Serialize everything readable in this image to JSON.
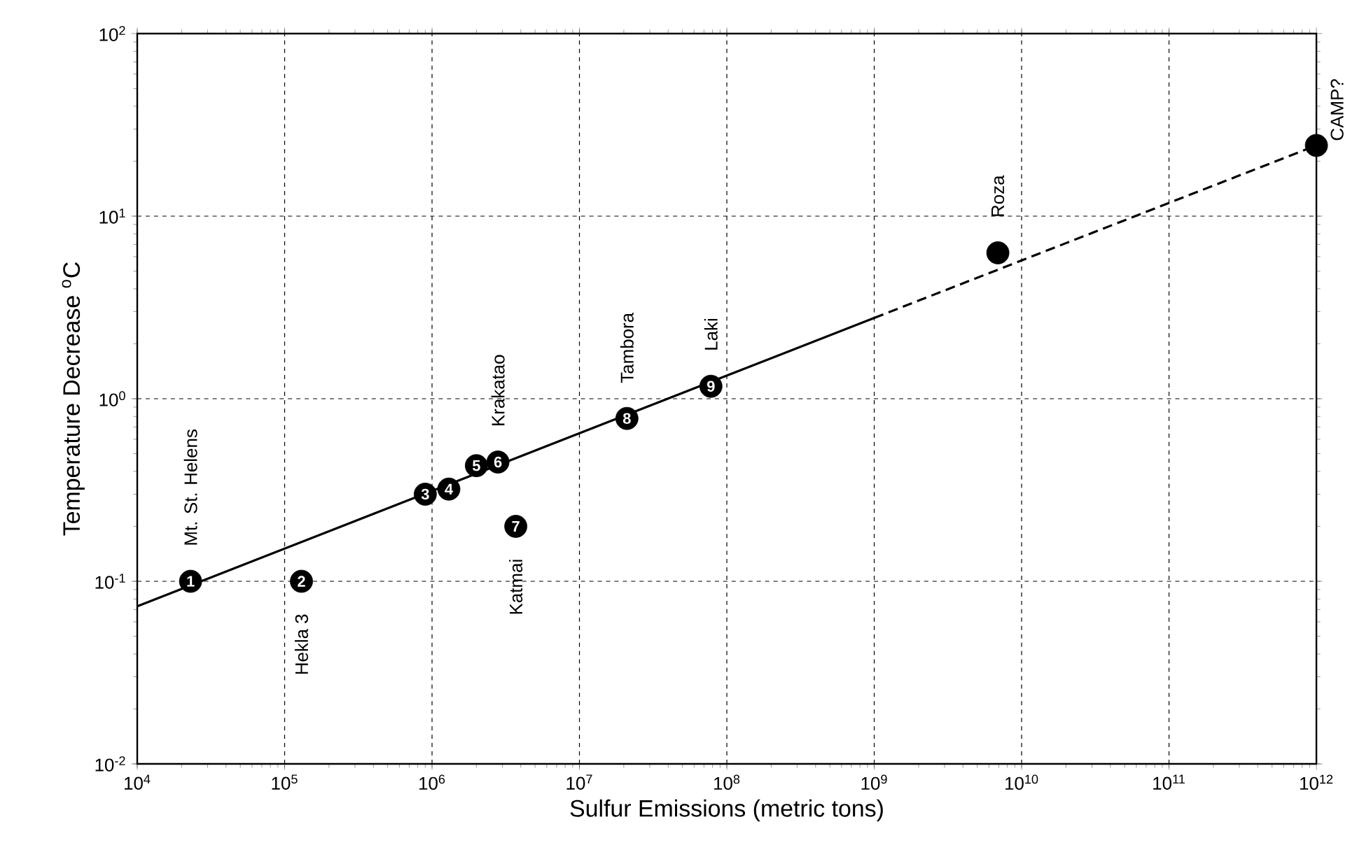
{
  "chart_data": {
    "type": "scatter",
    "xlabel": "Sulfur Emissions (metric tons)",
    "ylabel": "Temperature Decrease $^{o}$C",
    "log": "xy",
    "grid": true,
    "marker": "circle",
    "xlim": [
      10000,
      1000000000000
    ],
    "ylim": [
      0.01,
      100
    ],
    "xticks": [
      {
        "value": 10000,
        "label": "10$^{4}$"
      },
      {
        "value": 100000,
        "label": "10$^{5}$"
      },
      {
        "value": 1000000,
        "label": "10$^{6}$"
      },
      {
        "value": 10000000,
        "label": "10$^{7}$"
      },
      {
        "value": 100000000,
        "label": "10$^{8}$"
      },
      {
        "value": 1000000000,
        "label": "10$^{9}$"
      },
      {
        "value": 10000000000,
        "label": "10$^{10}$"
      },
      {
        "value": 100000000000,
        "label": "10$^{11}$"
      },
      {
        "value": 1000000000000,
        "label": "10$^{12}$"
      }
    ],
    "yticks": [
      {
        "value": 0.01,
        "label": "10$^{-2}$"
      },
      {
        "value": 0.1,
        "label": "10$^{-1}$"
      },
      {
        "value": 1,
        "label": "10$^{0}$"
      },
      {
        "value": 10,
        "label": "10$^{1}$"
      },
      {
        "value": 100,
        "label": "10$^{2}$"
      }
    ],
    "series": [
      {
        "type": "line",
        "color": "#000000",
        "marker": "none",
        "line_style": "solid",
        "x": [
          10000,
          1000000000
        ],
        "values": [
          0.073,
          2.77
        ]
      },
      {
        "type": "line",
        "color": "#000000",
        "marker": "none",
        "line_style": "dashed",
        "x": [
          1000000000,
          1000000000000
        ],
        "values": [
          2.77,
          24.4
        ]
      },
      {
        "color": "#000000",
        "x": [
          23000,
          130000,
          900000,
          1300000,
          2000000,
          2800000,
          3700000,
          21000000,
          78000000
        ],
        "values": [
          0.1,
          0.1,
          0.3,
          0.32,
          0.43,
          0.45,
          0.2,
          0.78,
          1.17
        ]
      },
      {
        "color": "#000000",
        "x": [
          6900000000,
          1000000000000
        ],
        "values": [
          6.3,
          24.4
        ]
      }
    ],
    "annotations": [
      {
        "text": "1",
        "x": 23000,
        "y": 0.1
      },
      {
        "text": "2",
        "x": 130000,
        "y": 0.1
      },
      {
        "text": "3",
        "x": 900000,
        "y": 0.3
      },
      {
        "text": "4",
        "x": 1300000,
        "y": 0.32
      },
      {
        "text": "5",
        "x": 2000000,
        "y": 0.43
      },
      {
        "text": "6",
        "x": 2800000,
        "y": 0.45
      },
      {
        "text": "7",
        "x": 3700000,
        "y": 0.2
      },
      {
        "text": "8",
        "x": 21000000,
        "y": 0.78
      },
      {
        "text": "9",
        "x": 78000000,
        "y": 1.17
      },
      {
        "text": "Mt. St. Helens",
        "x": 23000,
        "y": 0.1
      },
      {
        "text": "Hekla 3",
        "x": 130000,
        "y": 0.1
      },
      {
        "text": "Krakatao",
        "x": 2800000,
        "y": 0.45
      },
      {
        "text": "Katmai",
        "x": 3700000,
        "y": 0.2
      },
      {
        "text": "Tambora",
        "x": 21000000,
        "y": 0.78
      },
      {
        "text": "Laki",
        "x": 78000000,
        "y": 1.17
      },
      {
        "text": "Roza",
        "x": 6900000000,
        "y": 6.3
      },
      {
        "text": "CAMP?",
        "x": 1000000000000,
        "y": 24.4
      }
    ]
  }
}
